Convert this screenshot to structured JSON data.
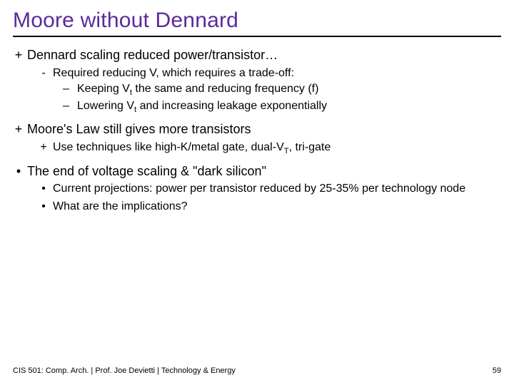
{
  "colors": {
    "title": "#5a2a9c",
    "text": "#000000",
    "background": "#ffffff",
    "rule": "#000000"
  },
  "title": "Moore without Dennard",
  "bullets": {
    "b1": {
      "marker": "+",
      "text": "Dennard scaling reduced power/transistor…"
    },
    "b1a": {
      "marker": "-",
      "text_pre": "Required reducing V, which requires a trade-off:"
    },
    "b1a1": {
      "marker": "–",
      "text_pre": "Keeping V",
      "sub": "t",
      "text_post": " the same and reducing frequency (f)"
    },
    "b1a2": {
      "marker": "–",
      "text_pre": "Lowering V",
      "sub": "t",
      "text_post": " and increasing leakage exponentially"
    },
    "b2": {
      "marker": "+",
      "text": "Moore's Law still gives more transistors"
    },
    "b2a": {
      "marker": "+",
      "text_pre": "Use techniques like high-K/metal gate, dual-V",
      "sub": "T",
      "text_post": ", tri-gate"
    },
    "b3": {
      "marker": "•",
      "text": "The end of voltage scaling & \"dark silicon\""
    },
    "b3a": {
      "marker": "•",
      "text": "Current projections: power per transistor reduced by 25-35% per technology node"
    },
    "b3b": {
      "marker": "•",
      "text": "What are the implications?"
    }
  },
  "footer": {
    "left": "CIS 501: Comp. Arch.  |  Prof. Joe Devietti  |  Technology & Energy",
    "page": "59"
  }
}
